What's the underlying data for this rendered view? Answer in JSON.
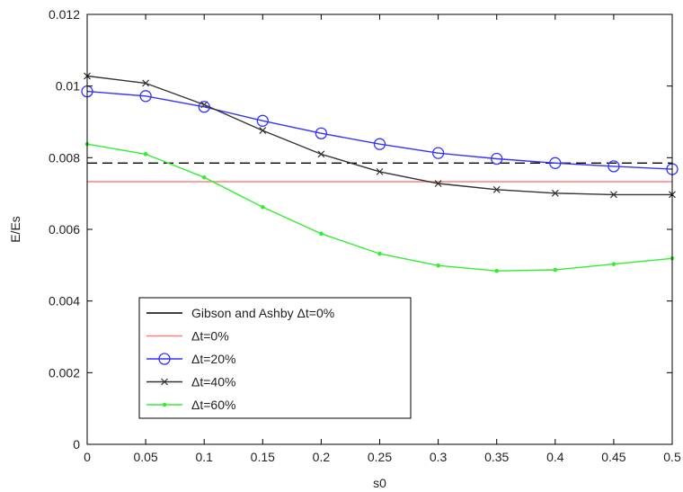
{
  "chart_data": {
    "type": "line",
    "title": "",
    "xlabel": "s0",
    "ylabel": "E/Es",
    "xlim": [
      0,
      0.5
    ],
    "ylim": [
      0,
      0.012
    ],
    "x_ticks": [
      0,
      0.05,
      0.1,
      0.15,
      0.2,
      0.25,
      0.3,
      0.35,
      0.4,
      0.45,
      0.5
    ],
    "x_tick_labels": [
      "0",
      "0.05",
      "0.1",
      "0.15",
      "0.2",
      "0.25",
      "0.3",
      "0.35",
      "0.4",
      "0.45",
      "0.5"
    ],
    "y_ticks": [
      0,
      0.002,
      0.004,
      0.006,
      0.008,
      0.01,
      0.012
    ],
    "y_tick_labels": [
      "0",
      "0.002",
      "0.004",
      "0.006",
      "0.008",
      "0.01",
      "0.012"
    ],
    "grid": false,
    "legend": "bottom-left",
    "x": [
      0,
      0.05,
      0.1,
      0.15,
      0.2,
      0.25,
      0.3,
      0.35,
      0.4,
      0.45,
      0.5
    ],
    "series": [
      {
        "name": "Gibson and Ashby Δt=0%",
        "color": "#000000",
        "line": "dashed",
        "marker": "none",
        "values": [
          0.00785,
          0.00785,
          0.00785,
          0.00785,
          0.00785,
          0.00785,
          0.00785,
          0.00785,
          0.00785,
          0.00785,
          0.00785
        ]
      },
      {
        "name": "Δt=0%",
        "color": "#ff8080",
        "line": "solid",
        "marker": "none",
        "values": [
          0.00733,
          0.00733,
          0.00733,
          0.00733,
          0.00733,
          0.00733,
          0.00733,
          0.00733,
          0.00733,
          0.00733,
          0.00733
        ]
      },
      {
        "name": "Δt=20%",
        "color": "#3333ff",
        "line": "solid",
        "marker": "circle",
        "values": [
          0.00985,
          0.00972,
          0.00942,
          0.00903,
          0.00868,
          0.00838,
          0.00813,
          0.00797,
          0.00785,
          0.00776,
          0.00768
        ]
      },
      {
        "name": "Δt=40%",
        "color": "#333333",
        "line": "solid",
        "marker": "x",
        "values": [
          0.01028,
          0.01008,
          0.00948,
          0.00876,
          0.0081,
          0.00761,
          0.00728,
          0.00711,
          0.00701,
          0.00697,
          0.00697
        ]
      },
      {
        "name": "Δt=60%",
        "color": "#33ee33",
        "line": "solid",
        "marker": "dot",
        "values": [
          0.00838,
          0.0081,
          0.00745,
          0.00662,
          0.00588,
          0.00532,
          0.00499,
          0.00484,
          0.00487,
          0.00503,
          0.00519
        ]
      }
    ]
  }
}
